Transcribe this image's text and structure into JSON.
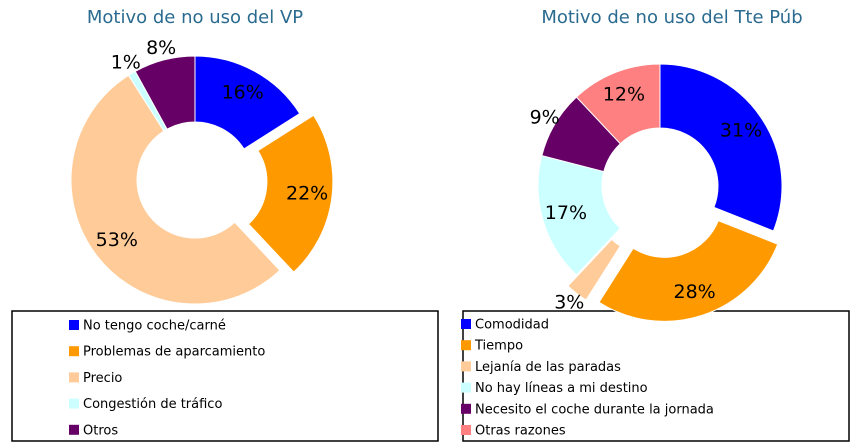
{
  "chart_data": [
    {
      "type": "pie",
      "donut": true,
      "title": "Motivo de no uso del VP",
      "categories": [
        "No tengo coche/carné",
        "Problemas de aparcamiento",
        "Precio",
        "Congestión de tráfico",
        "Otros"
      ],
      "values": [
        16,
        22,
        53,
        1,
        8
      ],
      "value_labels": [
        "16%",
        "22%",
        "53%",
        "1%",
        "8%"
      ],
      "colors": [
        "#0000ff",
        "#ff9900",
        "#ffcc99",
        "#ccffff",
        "#660066"
      ],
      "explode": [
        false,
        true,
        false,
        false,
        false
      ]
    },
    {
      "type": "pie",
      "donut": true,
      "title": "Motivo de no uso del Tte Púb",
      "categories": [
        "Comodidad",
        "Tiempo",
        "Lejanía de las paradas",
        "No hay líneas a mi destino",
        "Necesito el coche durante la jornada",
        "Otras razones"
      ],
      "values": [
        31,
        28,
        3,
        17,
        9,
        12
      ],
      "value_labels": [
        "31%",
        "28%",
        "3%",
        "17%",
        "9%",
        "12%"
      ],
      "colors": [
        "#0000ff",
        "#ff9900",
        "#ffcc99",
        "#ccffff",
        "#660066",
        "#ff8080"
      ],
      "explode": [
        false,
        true,
        true,
        false,
        false,
        false
      ]
    }
  ]
}
